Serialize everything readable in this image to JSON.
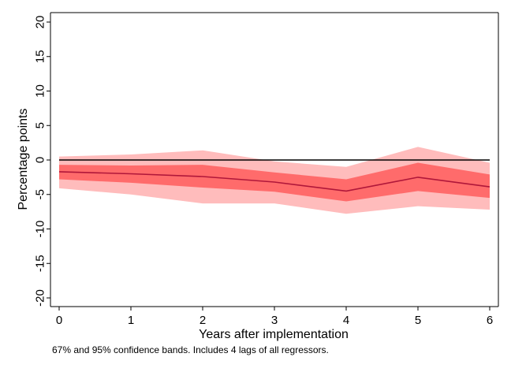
{
  "chart_data": {
    "type": "line",
    "title": "",
    "xlabel": "Years after implementation",
    "ylabel": "Percentage points",
    "note": "67% and 95% confidence bands. Includes 4 lags of all regressors.",
    "x": [
      0,
      1,
      2,
      3,
      4,
      5,
      6
    ],
    "xlim": [
      0,
      6
    ],
    "ylim": [
      -20,
      20
    ],
    "xticks": [
      "0",
      "1",
      "2",
      "3",
      "4",
      "5",
      "6"
    ],
    "yticks": [
      "-20",
      "-15",
      "-10",
      "-5",
      "0",
      "5",
      "10",
      "15",
      "20"
    ],
    "reference_line": 0,
    "grid": false,
    "series": [
      {
        "estimate": [
          -1.7,
          -2.0,
          -2.4,
          -3.2,
          -4.5,
          -2.5,
          -3.9
        ]
      },
      {
        "band": "67%",
        "lower": [
          -2.8,
          -3.3,
          -4.0,
          -4.6,
          -6.0,
          -4.5,
          -5.5
        ],
        "upper": [
          -0.7,
          -0.8,
          -0.7,
          -1.8,
          -2.8,
          -0.4,
          -2.1
        ]
      },
      {
        "band": "95%",
        "lower": [
          -4.1,
          -5.0,
          -6.3,
          -6.3,
          -7.8,
          -6.7,
          -7.2
        ],
        "upper": [
          0.5,
          0.8,
          1.4,
          -0.2,
          -1.0,
          1.9,
          -0.4
        ]
      }
    ],
    "colors": {
      "estimate": "#b0173a",
      "band_67": "#ff6b6b",
      "band_95": "#ffbcbc",
      "reference": "#000000",
      "axis": "#000000"
    }
  }
}
